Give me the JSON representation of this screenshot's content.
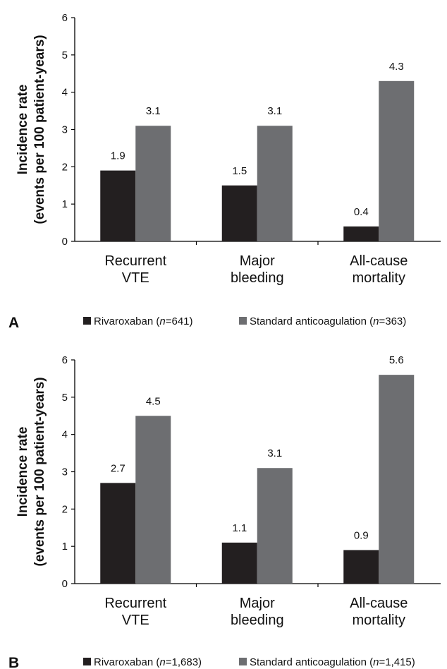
{
  "chart_data": [
    {
      "type": "bar",
      "panel_label": "A",
      "ylabel_line1": "Incidence rate",
      "ylabel_line2": "(events per 100 patient-years)",
      "ylim": [
        0,
        6
      ],
      "yticks": [
        0,
        1,
        2,
        3,
        4,
        5,
        6
      ],
      "categories": [
        {
          "line1": "Recurrent",
          "line2": "VTE"
        },
        {
          "line1": "Major",
          "line2": "bleeding"
        },
        {
          "line1": "All-cause",
          "line2": "mortality"
        }
      ],
      "series": [
        {
          "name": "Rivaroxaban",
          "n_label": "n",
          "n_value": "=641",
          "color": "#231f20",
          "values": [
            1.9,
            1.5,
            0.4
          ],
          "labels": [
            "1.9",
            "1.5",
            "0.4"
          ]
        },
        {
          "name": "Standard anticoagulation",
          "n_label": "n",
          "n_value": "=363",
          "color": "#6d6e71",
          "values": [
            3.1,
            3.1,
            4.3
          ],
          "labels": [
            "3.1",
            "3.1",
            "4.3"
          ]
        }
      ]
    },
    {
      "type": "bar",
      "panel_label": "B",
      "ylabel_line1": "Incidence rate",
      "ylabel_line2": "(events per 100 patient-years)",
      "ylim": [
        0,
        6
      ],
      "yticks": [
        0,
        1,
        2,
        3,
        4,
        5,
        6
      ],
      "categories": [
        {
          "line1": "Recurrent",
          "line2": "VTE"
        },
        {
          "line1": "Major",
          "line2": "bleeding"
        },
        {
          "line1": "All-cause",
          "line2": "mortality"
        }
      ],
      "series": [
        {
          "name": "Rivaroxaban",
          "n_label": "n",
          "n_value": "=1,683",
          "color": "#231f20",
          "values": [
            2.7,
            1.1,
            0.9
          ],
          "labels": [
            "2.7",
            "1.1",
            "0.9"
          ]
        },
        {
          "name": "Standard anticoagulation",
          "n_label": "n",
          "n_value": "=1,415",
          "color": "#6d6e71",
          "values": [
            4.5,
            3.1,
            5.6
          ],
          "labels": [
            "4.5",
            "3.1",
            "5.6"
          ]
        }
      ]
    }
  ]
}
